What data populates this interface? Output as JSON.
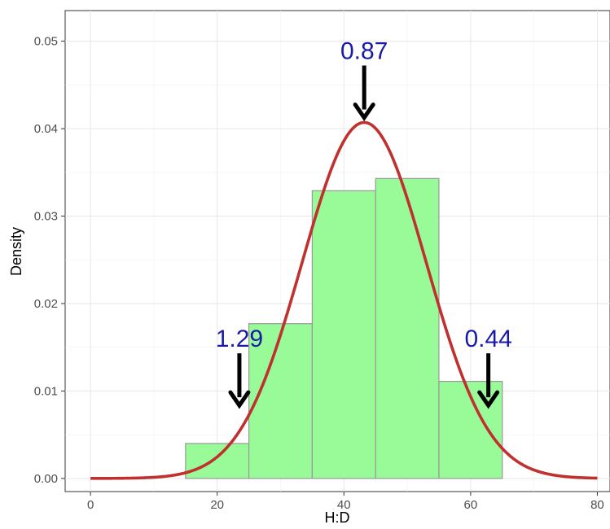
{
  "chart_data": {
    "type": "bar",
    "title": "",
    "xlabel": "H:D",
    "ylabel": "Density",
    "xlim": [
      -4,
      82
    ],
    "ylim": [
      -0.0015,
      0.0535
    ],
    "x_ticks": [
      0,
      20,
      40,
      60,
      80
    ],
    "x_tick_labels": [
      "0",
      "20",
      "40",
      "60",
      "80"
    ],
    "y_ticks": [
      0,
      0.01,
      0.02,
      0.03,
      0.04,
      0.05
    ],
    "y_tick_labels": [
      "0.00",
      "0.01",
      "0.02",
      "0.03",
      "0.04",
      "0.05"
    ],
    "grid": true,
    "legend": "none",
    "histogram": {
      "bin_edges": [
        15,
        25,
        35,
        45,
        55,
        65
      ],
      "densities": [
        0.004,
        0.0177,
        0.0329,
        0.0343,
        0.0111
      ],
      "fill_color": "#98fb98",
      "edge_color": "#999999"
    },
    "density_curve": {
      "kind": "normal",
      "mean": 43.2,
      "sd": 9.8,
      "x_range": [
        0,
        80
      ],
      "color": "#c0302e"
    },
    "annotations": [
      {
        "label": "0.87",
        "x": 43.2,
        "y": 0.0407
      },
      {
        "label": "1.29",
        "x": 23.5,
        "y": 0.0078
      },
      {
        "label": "0.44",
        "x": 62.8,
        "y": 0.0078
      }
    ],
    "annotation_color": "#1a1aa8",
    "arrow_color": "#000000"
  }
}
